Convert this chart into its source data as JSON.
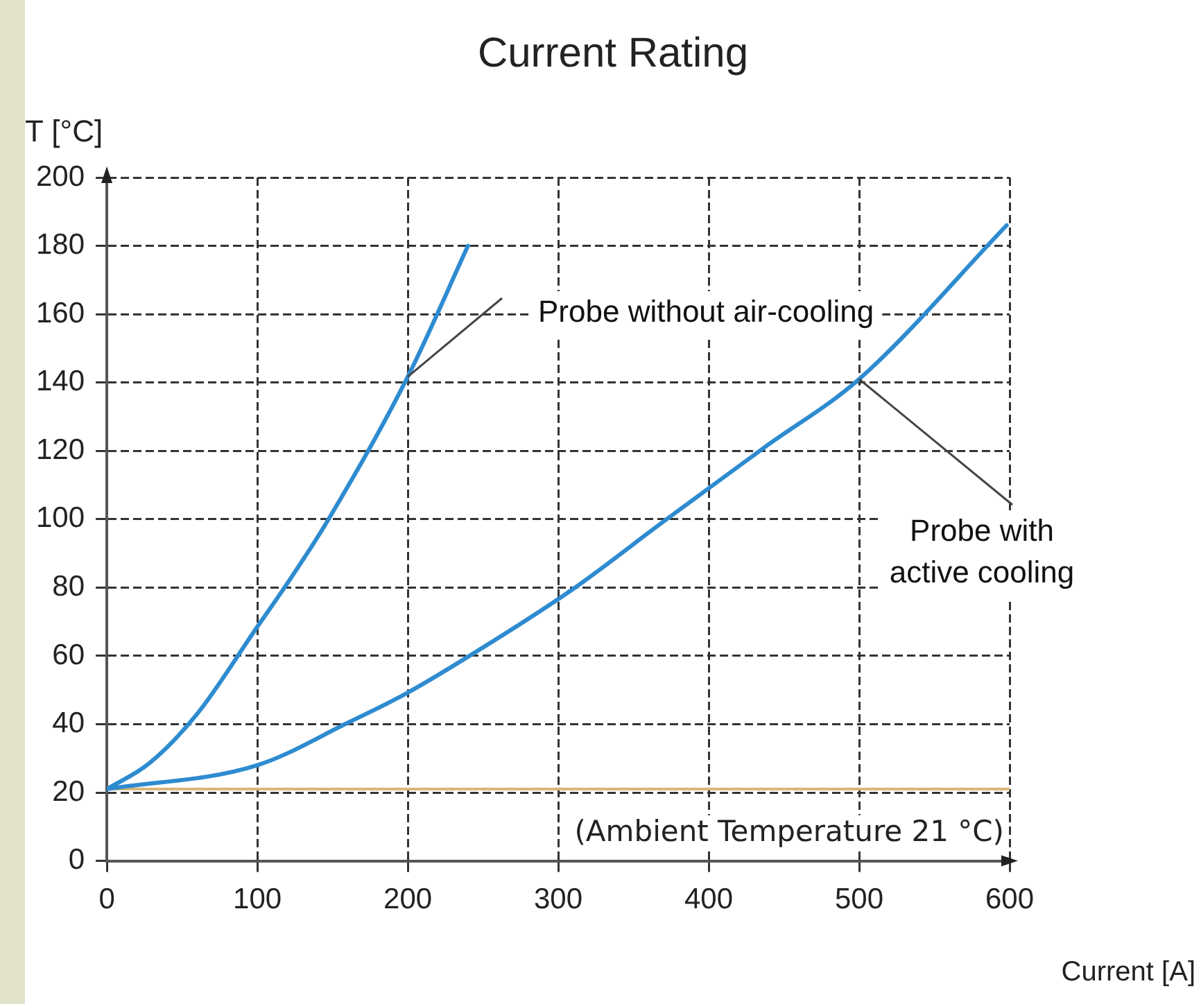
{
  "chart_data": {
    "type": "line",
    "title": "Current Rating",
    "xlabel": "Current [A]",
    "ylabel": "T [°C]",
    "xlim": [
      0,
      600
    ],
    "xticks": [
      0,
      100,
      200,
      300,
      400,
      500,
      600
    ],
    "ylim": [
      0,
      200
    ],
    "yticks": [
      0,
      20,
      40,
      60,
      80,
      100,
      120,
      140,
      160,
      180,
      200
    ],
    "grid": true,
    "legend": false,
    "marker": "none",
    "line_style": "solid",
    "series": [
      {
        "name": "Probe without air-cooling",
        "color": "#2e8bd0",
        "x": [
          0,
          28,
          60,
          100,
          119,
          146,
          200,
          240
        ],
        "values": [
          21,
          28.5,
          43,
          68.5,
          80.6,
          99,
          141.7,
          180
        ]
      },
      {
        "name": "Probe with active cooling",
        "color": "#2e8bd0",
        "x": [
          0,
          100,
          161,
          199,
          241,
          308,
          372,
          437,
          500,
          598
        ],
        "values": [
          21,
          28,
          40.6,
          49,
          60,
          79,
          100,
          121,
          141,
          186
        ]
      }
    ],
    "ref_lines": [
      {
        "axis": "y",
        "value": 21,
        "label": "(Ambient Temperature 21 °C)",
        "color": "#d9b77a"
      }
    ]
  }
}
